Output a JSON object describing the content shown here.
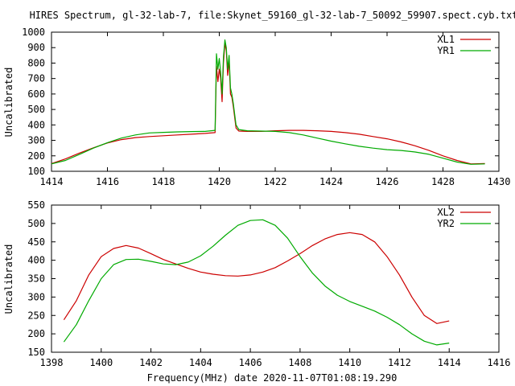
{
  "title": "HIRES Spectrum, gl-32-lab-7, file:Skynet_59160_gl-32-lab-7_50092_59907.spect.cyb.txt",
  "xlabel": "Frequency(MHz) date 2020-11-07T01:08:19.290",
  "colors": {
    "xl": "#cc0000",
    "yr": "#00aa00"
  },
  "chart_data": [
    {
      "type": "line",
      "ylabel": "Uncalibrated",
      "xlim": [
        1414,
        1430
      ],
      "ylim": [
        100,
        1000
      ],
      "x_ticks": [
        1414,
        1416,
        1418,
        1420,
        1422,
        1424,
        1426,
        1428,
        1430
      ],
      "y_ticks": [
        100,
        200,
        300,
        400,
        500,
        600,
        700,
        800,
        900,
        1000
      ],
      "legend_position": "top-right",
      "grid": false,
      "series": [
        {
          "name": "XL1",
          "x": [
            1414.0,
            1414.5,
            1415.0,
            1415.5,
            1416.0,
            1416.5,
            1417.0,
            1417.5,
            1418.0,
            1418.5,
            1419.0,
            1419.5,
            1419.85,
            1419.9,
            1419.95,
            1420.0,
            1420.05,
            1420.1,
            1420.15,
            1420.2,
            1420.25,
            1420.3,
            1420.35,
            1420.4,
            1420.45,
            1420.5,
            1420.6,
            1420.7,
            1421.0,
            1421.5,
            1422.0,
            1422.5,
            1423.0,
            1423.5,
            1424.0,
            1424.5,
            1425.0,
            1425.5,
            1426.0,
            1426.5,
            1427.0,
            1427.5,
            1428.0,
            1428.5,
            1429.0,
            1429.5
          ],
          "values": [
            150,
            180,
            218,
            252,
            283,
            305,
            318,
            325,
            330,
            335,
            340,
            345,
            350,
            780,
            680,
            760,
            700,
            550,
            800,
            930,
            880,
            720,
            820,
            600,
            580,
            520,
            380,
            360,
            358,
            358,
            362,
            365,
            365,
            362,
            358,
            350,
            340,
            325,
            310,
            290,
            265,
            235,
            200,
            170,
            148,
            150
          ]
        },
        {
          "name": "YR1",
          "x": [
            1414.0,
            1414.5,
            1415.0,
            1415.5,
            1416.0,
            1416.5,
            1417.0,
            1417.5,
            1418.0,
            1418.5,
            1419.0,
            1419.5,
            1419.85,
            1419.9,
            1419.95,
            1420.0,
            1420.05,
            1420.1,
            1420.15,
            1420.2,
            1420.25,
            1420.3,
            1420.35,
            1420.4,
            1420.45,
            1420.5,
            1420.6,
            1420.7,
            1421.0,
            1421.5,
            1422.0,
            1422.5,
            1423.0,
            1423.5,
            1424.0,
            1424.5,
            1425.0,
            1425.5,
            1426.0,
            1426.5,
            1427.0,
            1427.5,
            1428.0,
            1428.5,
            1429.0,
            1429.5
          ],
          "values": [
            148,
            170,
            210,
            250,
            285,
            315,
            335,
            348,
            352,
            355,
            357,
            358,
            365,
            860,
            760,
            830,
            740,
            600,
            840,
            950,
            900,
            760,
            850,
            640,
            600,
            540,
            400,
            370,
            362,
            360,
            358,
            350,
            335,
            315,
            295,
            278,
            262,
            250,
            240,
            235,
            225,
            210,
            185,
            160,
            145,
            148
          ]
        }
      ]
    },
    {
      "type": "line",
      "ylabel": "Uncalibrated",
      "xlim": [
        1398,
        1416
      ],
      "ylim": [
        150,
        550
      ],
      "x_ticks": [
        1398,
        1400,
        1402,
        1404,
        1406,
        1408,
        1410,
        1412,
        1414,
        1416
      ],
      "y_ticks": [
        150,
        200,
        250,
        300,
        350,
        400,
        450,
        500,
        550
      ],
      "legend_position": "top-right",
      "grid": false,
      "series": [
        {
          "name": "XL2",
          "x": [
            1398.5,
            1399.0,
            1399.5,
            1400.0,
            1400.5,
            1401.0,
            1401.5,
            1402.0,
            1402.5,
            1403.0,
            1403.5,
            1404.0,
            1404.5,
            1405.0,
            1405.5,
            1406.0,
            1406.5,
            1407.0,
            1407.5,
            1408.0,
            1408.5,
            1409.0,
            1409.5,
            1410.0,
            1410.5,
            1411.0,
            1411.5,
            1412.0,
            1412.5,
            1413.0,
            1413.5,
            1414.0
          ],
          "values": [
            238,
            290,
            360,
            410,
            432,
            440,
            433,
            418,
            402,
            390,
            378,
            368,
            362,
            358,
            357,
            360,
            368,
            380,
            398,
            418,
            440,
            458,
            470,
            475,
            470,
            450,
            410,
            360,
            300,
            250,
            228,
            235
          ]
        },
        {
          "name": "YR2",
          "x": [
            1398.5,
            1399.0,
            1399.5,
            1400.0,
            1400.5,
            1401.0,
            1401.5,
            1402.0,
            1402.5,
            1403.0,
            1403.5,
            1404.0,
            1404.5,
            1405.0,
            1405.5,
            1406.0,
            1406.5,
            1407.0,
            1407.5,
            1408.0,
            1408.5,
            1409.0,
            1409.5,
            1410.0,
            1410.5,
            1411.0,
            1411.5,
            1412.0,
            1412.5,
            1413.0,
            1413.5,
            1414.0
          ],
          "values": [
            178,
            225,
            290,
            350,
            388,
            402,
            403,
            397,
            390,
            388,
            395,
            412,
            438,
            468,
            495,
            508,
            510,
            495,
            460,
            410,
            365,
            330,
            305,
            288,
            275,
            262,
            245,
            225,
            200,
            180,
            170,
            175
          ]
        }
      ]
    }
  ]
}
